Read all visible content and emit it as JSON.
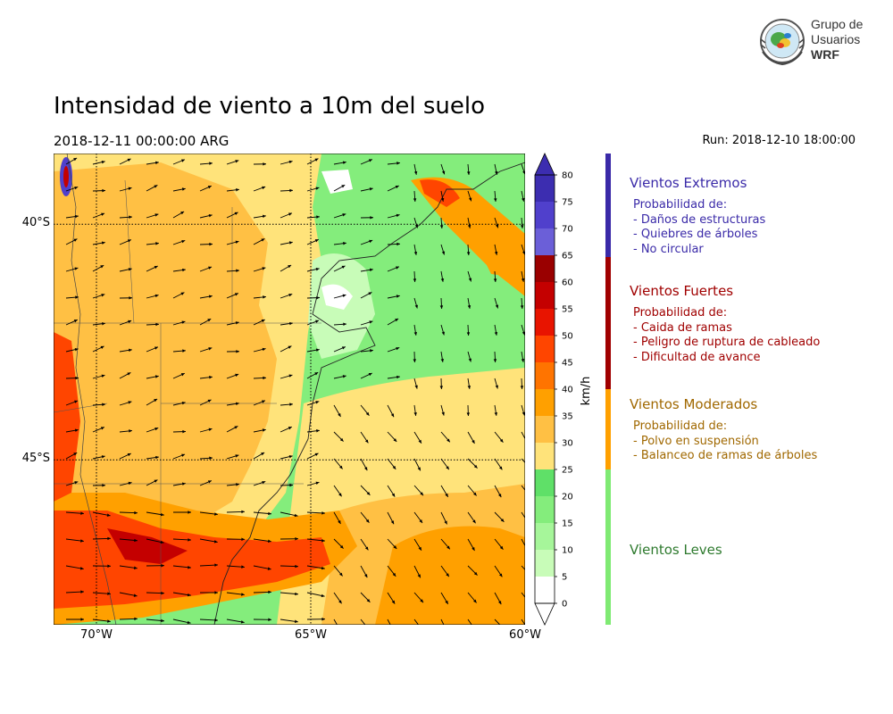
{
  "header": {
    "title": "Intensidad de viento a 10m del suelo",
    "valid_time": "2018-12-11 00:00:00 ARG",
    "run": "Run: 2018-12-10 18:00:00"
  },
  "logo": {
    "line1": "Grupo de",
    "line2": "Usuarios",
    "line3": "WRF"
  },
  "map": {
    "lon_range": [
      -71,
      -60
    ],
    "lat_range": [
      -48.5,
      -38.5
    ],
    "x_ticks": [
      {
        "lon": -70,
        "label": "70°W"
      },
      {
        "lon": -65,
        "label": "65°W"
      },
      {
        "lon": -60,
        "label": "60°W"
      }
    ],
    "y_ticks": [
      {
        "lat": -40,
        "label": "40°S"
      },
      {
        "lat": -45,
        "label": "45°S"
      }
    ]
  },
  "colorbar": {
    "unit": "km/h",
    "levels": [
      0,
      5,
      10,
      15,
      20,
      25,
      30,
      35,
      40,
      45,
      50,
      55,
      60,
      65,
      70,
      75,
      80
    ],
    "colors": [
      "#ffffff",
      "#c8fcb8",
      "#a6f69a",
      "#84ed7c",
      "#5fe068",
      "#ffe37a",
      "#ffc044",
      "#ffa000",
      "#ff7400",
      "#ff4500",
      "#e81400",
      "#c40000",
      "#9a0000",
      "#6b5fd8",
      "#5040cc",
      "#3c2db0"
    ]
  },
  "categories": [
    {
      "title": "Vientos Extremos",
      "color": "#3a2aa8",
      "lines": [
        "Probabilidad de:",
        "- Daños de estructuras",
        "- Quiebres de árboles",
        "- No circular"
      ]
    },
    {
      "title": "Vientos Fuertes",
      "color": "#a00000",
      "lines": [
        "Probabilidad de:",
        "- Caida de ramas",
        "- Peligro de ruptura de cableado",
        "- Dificultad de avance"
      ]
    },
    {
      "title": "Vientos Moderados",
      "color": "#a06800",
      "lines": [
        "Probabilidad de:",
        "- Polvo en suspensión",
        "- Balanceo de ramas de árboles"
      ]
    },
    {
      "title": "Vientos Leves",
      "color": "#2e7a2e",
      "lines": []
    }
  ]
}
